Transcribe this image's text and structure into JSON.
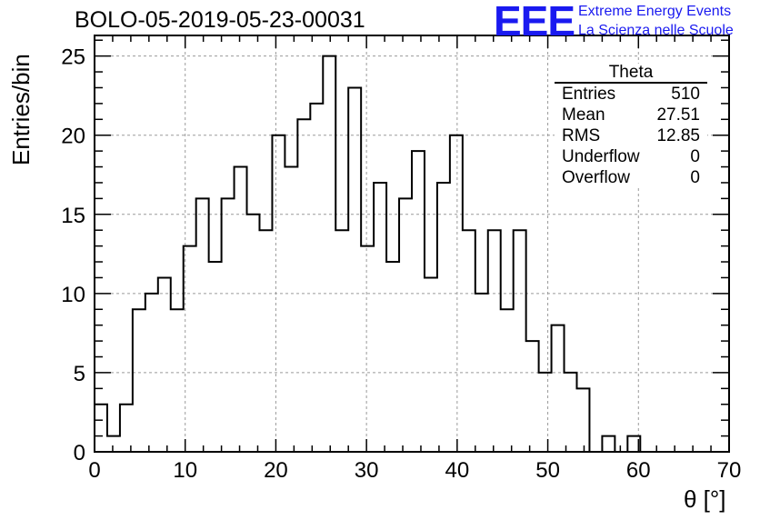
{
  "title": "BOLO-05-2019-05-23-00031",
  "logo": {
    "mark": "EEE",
    "line1": "Extreme Energy Events",
    "line2": "La Scienza nelle Scuole",
    "color": "#1a1af0"
  },
  "stats": {
    "name": "Theta",
    "rows": [
      {
        "label": "Entries",
        "value": "510"
      },
      {
        "label": "Mean",
        "value": "27.51"
      },
      {
        "label": "RMS",
        "value": "12.85"
      },
      {
        "label": "Underflow",
        "value": "0"
      },
      {
        "label": "Overflow",
        "value": "0"
      }
    ]
  },
  "chart_data": {
    "type": "histogram",
    "xlabel": "θ [°]",
    "ylabel": "Entries/bin",
    "xlim": [
      0,
      70
    ],
    "ylim": [
      0,
      26.3
    ],
    "bin_width": 1.4,
    "bin_edges_start": 0,
    "values": [
      3,
      1,
      3,
      9,
      10,
      11,
      9,
      13,
      16,
      12,
      16,
      18,
      15,
      14,
      20,
      18,
      21,
      22,
      25,
      14,
      23,
      13,
      17,
      12,
      16,
      19,
      11,
      17,
      20,
      14,
      10,
      14,
      9,
      14,
      7,
      5,
      8,
      5,
      4,
      0,
      1,
      0,
      1,
      0,
      0,
      0,
      0,
      0,
      0,
      0
    ],
    "xticks": [
      0,
      10,
      20,
      30,
      40,
      50,
      60,
      70
    ],
    "yticks": [
      0,
      5,
      10,
      15,
      20,
      25
    ],
    "grid": true,
    "line_color": "#000000"
  }
}
